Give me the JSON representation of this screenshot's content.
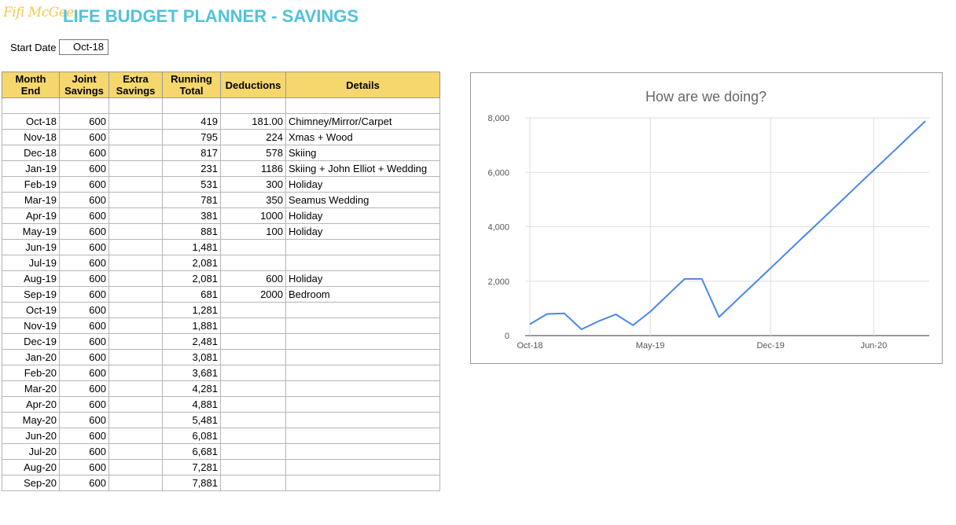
{
  "header": {
    "logo_text": "Fifi McGee",
    "title": "LIFE BUDGET PLANNER - SAVINGS"
  },
  "start": {
    "label": "Start Date",
    "value": "Oct-18"
  },
  "table": {
    "headers": {
      "month": [
        "Month",
        "End"
      ],
      "joint": [
        "Joint",
        "Savings"
      ],
      "extra": [
        "Extra",
        "Savings"
      ],
      "running": [
        "Running",
        "Total"
      ],
      "deductions": "Deductions",
      "details": "Details"
    },
    "rows": [
      {
        "month": "Oct-18",
        "joint": "600",
        "extra": "",
        "running": "419",
        "deductions": "181.00",
        "details": "Chimney/Mirror/Carpet"
      },
      {
        "month": "Nov-18",
        "joint": "600",
        "extra": "",
        "running": "795",
        "deductions": "224",
        "details": "Xmas + Wood"
      },
      {
        "month": "Dec-18",
        "joint": "600",
        "extra": "",
        "running": "817",
        "deductions": "578",
        "details": "Skiing"
      },
      {
        "month": "Jan-19",
        "joint": "600",
        "extra": "",
        "running": "231",
        "deductions": "1186",
        "details": "Skiing + John Elliot + Wedding"
      },
      {
        "month": "Feb-19",
        "joint": "600",
        "extra": "",
        "running": "531",
        "deductions": "300",
        "details": "Holiday"
      },
      {
        "month": "Mar-19",
        "joint": "600",
        "extra": "",
        "running": "781",
        "deductions": "350",
        "details": "Seamus Wedding"
      },
      {
        "month": "Apr-19",
        "joint": "600",
        "extra": "",
        "running": "381",
        "deductions": "1000",
        "details": "Holiday"
      },
      {
        "month": "May-19",
        "joint": "600",
        "extra": "",
        "running": "881",
        "deductions": "100",
        "details": "Holiday"
      },
      {
        "month": "Jun-19",
        "joint": "600",
        "extra": "",
        "running": "1,481",
        "deductions": "",
        "details": ""
      },
      {
        "month": "Jul-19",
        "joint": "600",
        "extra": "",
        "running": "2,081",
        "deductions": "",
        "details": ""
      },
      {
        "month": "Aug-19",
        "joint": "600",
        "extra": "",
        "running": "2,081",
        "deductions": "600",
        "details": "Holiday"
      },
      {
        "month": "Sep-19",
        "joint": "600",
        "extra": "",
        "running": "681",
        "deductions": "2000",
        "details": "Bedroom"
      },
      {
        "month": "Oct-19",
        "joint": "600",
        "extra": "",
        "running": "1,281",
        "deductions": "",
        "details": ""
      },
      {
        "month": "Nov-19",
        "joint": "600",
        "extra": "",
        "running": "1,881",
        "deductions": "",
        "details": ""
      },
      {
        "month": "Dec-19",
        "joint": "600",
        "extra": "",
        "running": "2,481",
        "deductions": "",
        "details": ""
      },
      {
        "month": "Jan-20",
        "joint": "600",
        "extra": "",
        "running": "3,081",
        "deductions": "",
        "details": ""
      },
      {
        "month": "Feb-20",
        "joint": "600",
        "extra": "",
        "running": "3,681",
        "deductions": "",
        "details": ""
      },
      {
        "month": "Mar-20",
        "joint": "600",
        "extra": "",
        "running": "4,281",
        "deductions": "",
        "details": ""
      },
      {
        "month": "Apr-20",
        "joint": "600",
        "extra": "",
        "running": "4,881",
        "deductions": "",
        "details": ""
      },
      {
        "month": "May-20",
        "joint": "600",
        "extra": "",
        "running": "5,481",
        "deductions": "",
        "details": ""
      },
      {
        "month": "Jun-20",
        "joint": "600",
        "extra": "",
        "running": "6,081",
        "deductions": "",
        "details": ""
      },
      {
        "month": "Jul-20",
        "joint": "600",
        "extra": "",
        "running": "6,681",
        "deductions": "",
        "details": ""
      },
      {
        "month": "Aug-20",
        "joint": "600",
        "extra": "",
        "running": "7,281",
        "deductions": "",
        "details": ""
      },
      {
        "month": "Sep-20",
        "joint": "600",
        "extra": "",
        "running": "7,881",
        "deductions": "",
        "details": ""
      }
    ]
  },
  "chart_data": {
    "type": "line",
    "title": "How are we doing?",
    "x": [
      "Oct-18",
      "Nov-18",
      "Dec-18",
      "Jan-19",
      "Feb-19",
      "Mar-19",
      "Apr-19",
      "May-19",
      "Jun-19",
      "Jul-19",
      "Aug-19",
      "Sep-19",
      "Oct-19",
      "Nov-19",
      "Dec-19",
      "Jan-20",
      "Feb-20",
      "Mar-20",
      "Apr-20",
      "May-20",
      "Jun-20",
      "Jul-20",
      "Aug-20",
      "Sep-20"
    ],
    "series": [
      {
        "values": [
          419,
          795,
          817,
          231,
          531,
          781,
          381,
          881,
          1481,
          2081,
          2081,
          681,
          1281,
          1881,
          2481,
          3081,
          3681,
          4281,
          4881,
          5481,
          6081,
          6681,
          7281,
          7881
        ]
      }
    ],
    "y_ticks": [
      "0",
      "2,000",
      "4,000",
      "6,000",
      "8,000"
    ],
    "x_tick_labels": [
      "Oct-18",
      "May-19",
      "Dec-19",
      "Jun-20"
    ],
    "ylim": [
      0,
      8000
    ],
    "grid": true,
    "line_color": "#4a86e8"
  }
}
